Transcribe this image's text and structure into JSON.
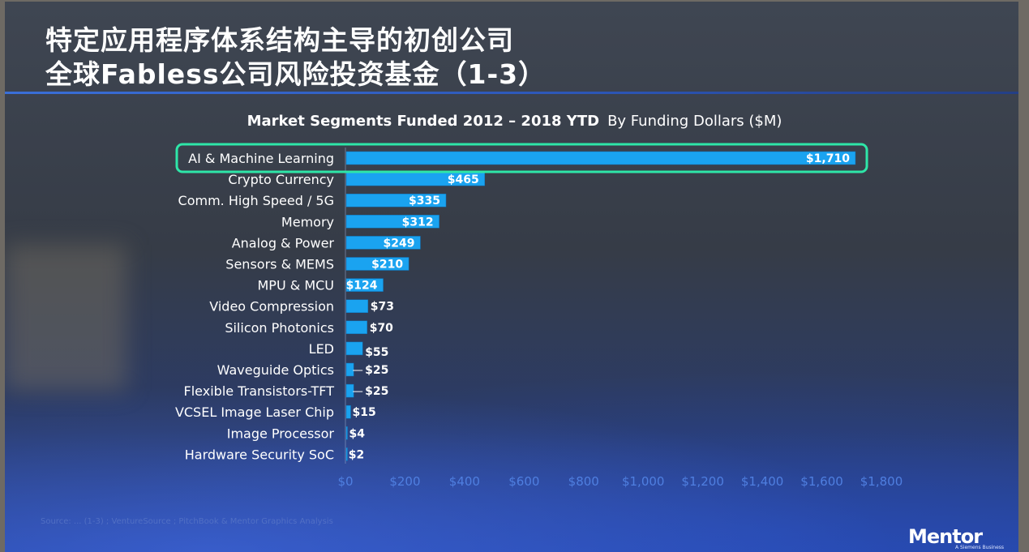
{
  "slide": {
    "title_line1": "特定应用程序体系结构主导的初创公司",
    "title_line2": "全球Fabless公司风险投资基金（1-3）",
    "source_note": "Source: ... (1-3) ; VentureSource ; PitchBook & Mentor Graphics Analysis",
    "logo": "Mentor",
    "logo_sub": "A Siemens Business"
  },
  "chart_data": {
    "type": "bar",
    "orientation": "horizontal",
    "title": "Market Segments Funded 2012 – 2018 YTD",
    "subtitle": "By Funding Dollars ($M)",
    "categories": [
      "AI & Machine Learning",
      "Crypto Currency",
      "Comm. High Speed / 5G",
      "Memory",
      "Analog & Power",
      "Sensors & MEMS",
      "MPU & MCU",
      "Video Compression",
      "Silicon Photonics",
      "LED",
      "Waveguide Optics",
      "Flexible Transistors-TFT",
      "VCSEL Image Laser Chip",
      "Image Processor",
      "Hardware Security SoC"
    ],
    "values": [
      1710,
      465,
      335,
      312,
      249,
      210,
      124,
      73,
      70,
      55,
      25,
      25,
      15,
      4,
      2
    ],
    "value_labels": [
      "$1,710",
      "$465",
      "$335",
      "$312",
      "$249",
      "$210",
      "$124",
      "$73",
      "$70",
      "$55",
      "$25",
      "$25",
      "$15",
      "$4",
      "$2"
    ],
    "xlim": [
      0,
      1800
    ],
    "x_ticks": [
      0,
      200,
      400,
      600,
      800,
      1000,
      1200,
      1400,
      1600,
      1800
    ],
    "x_tick_labels": [
      "$0",
      "$200",
      "$400",
      "$600",
      "$800",
      "$1,000",
      "$1,200",
      "$1,400",
      "$1,600",
      "$1,800"
    ],
    "highlighted_category": "AI & Machine Learning",
    "bar_color": "#1aa3f0",
    "highlight_color": "#2ee6a8",
    "tick_label_color": "#4f7fe0",
    "grid": false
  }
}
